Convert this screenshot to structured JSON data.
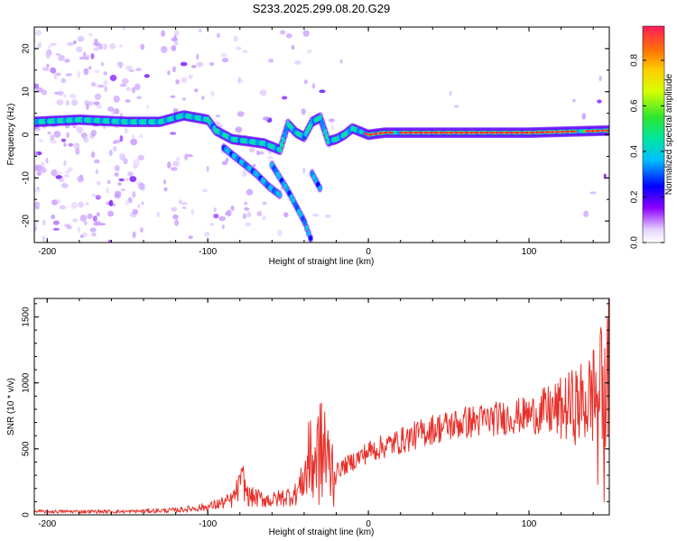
{
  "title": "S233.2025.299.08.20.G29",
  "colors": {
    "snr_line": "#e8302a",
    "axis": "#000000",
    "background": "#ffffff"
  },
  "chart_data": [
    {
      "type": "heatmap",
      "name": "spectrogram",
      "xlabel": "Height of straight line (km)",
      "ylabel": "Frequency (Hz)",
      "xlim": [
        -208,
        150
      ],
      "ylim": [
        -25,
        25
      ],
      "x_ticks": [
        -200,
        -100,
        0,
        100
      ],
      "x_tick_labels": [
        "-200",
        "-100",
        "0",
        "100"
      ],
      "y_ticks": [
        -20,
        -10,
        0,
        10,
        20
      ],
      "y_tick_labels": [
        "-20",
        "-10",
        "0",
        "10",
        "20"
      ],
      "colorbar": {
        "label": "Normalized spectral amplitude",
        "range": [
          0,
          0.95
        ],
        "ticks": [
          0.0,
          0.2,
          0.4,
          0.6,
          0.8
        ],
        "tick_labels": [
          "0.0",
          "0.2",
          "0.4",
          "0.6",
          "0.8"
        ]
      },
      "ridges": [
        {
          "name": "main-band",
          "points": [
            [
              -208,
              3
            ],
            [
              -180,
              3.5
            ],
            [
              -150,
              3
            ],
            [
              -130,
              3
            ],
            [
              -115,
              4.5
            ],
            [
              -100,
              3.5
            ],
            [
              -95,
              1
            ],
            [
              -85,
              -1
            ],
            [
              -75,
              -1.5
            ],
            [
              -65,
              -2
            ],
            [
              -55,
              -3.5
            ],
            [
              -50,
              2.5
            ],
            [
              -45,
              0.5
            ],
            [
              -40,
              -0.5
            ],
            [
              -35,
              3
            ],
            [
              -30,
              4
            ],
            [
              -25,
              -1.5
            ],
            [
              -20,
              -1
            ],
            [
              -15,
              0
            ],
            [
              -10,
              1.5
            ],
            [
              0,
              0
            ],
            [
              10,
              0.5
            ],
            [
              50,
              0.5
            ],
            [
              100,
              0.5
            ],
            [
              150,
              1
            ]
          ]
        },
        {
          "name": "lower-branch-1",
          "points": [
            [
              -90,
              -3
            ],
            [
              -80,
              -6
            ],
            [
              -70,
              -9
            ],
            [
              -62,
              -12
            ],
            [
              -55,
              -14
            ]
          ]
        },
        {
          "name": "lower-branch-2",
          "points": [
            [
              -60,
              -7
            ],
            [
              -50,
              -13
            ],
            [
              -40,
              -20
            ],
            [
              -35,
              -25
            ]
          ]
        },
        {
          "name": "lower-branch-3",
          "points": [
            [
              -35,
              -9
            ],
            [
              -30,
              -12.5
            ]
          ]
        }
      ],
      "peak_segments": [
        [
          -2,
          15
        ],
        [
          20,
          130
        ],
        [
          135,
          150
        ]
      ]
    },
    {
      "type": "line",
      "name": "snr",
      "xlabel": "Height of straight line (km)",
      "ylabel": "SNR (10 * v/v)",
      "xlim": [
        -208,
        150
      ],
      "ylim": [
        0,
        1640
      ],
      "x_ticks": [
        -200,
        -100,
        0,
        100
      ],
      "x_tick_labels": [
        "-200",
        "-100",
        "0",
        "100"
      ],
      "y_ticks": [
        0,
        500,
        1000,
        1500
      ],
      "y_tick_labels": [
        "0",
        "500",
        "1000",
        "1500"
      ],
      "series": [
        {
          "name": "SNR",
          "trend": [
            [
              -208,
              25
            ],
            [
              -150,
              25
            ],
            [
              -120,
              35
            ],
            [
              -100,
              60
            ],
            [
              -85,
              110
            ],
            [
              -78,
              260
            ],
            [
              -75,
              140
            ],
            [
              -60,
              110
            ],
            [
              -45,
              160
            ],
            [
              -35,
              400
            ],
            [
              -30,
              480
            ],
            [
              -25,
              380
            ],
            [
              -20,
              330
            ],
            [
              0,
              480
            ],
            [
              20,
              560
            ],
            [
              40,
              650
            ],
            [
              60,
              700
            ],
            [
              80,
              730
            ],
            [
              100,
              760
            ],
            [
              120,
              800
            ],
            [
              135,
              850
            ],
            [
              145,
              950
            ],
            [
              150,
              1000
            ]
          ],
          "spikes": [
            [
              -80,
              300
            ],
            [
              -30,
              840
            ],
            [
              -37,
              700
            ],
            [
              -27,
              780
            ],
            [
              145,
              1420
            ],
            [
              150,
              1640
            ],
            [
              149,
              1500
            ],
            [
              140,
              1250
            ]
          ],
          "dips": [
            [
              147,
              100
            ],
            [
              143,
              230
            ]
          ]
        }
      ]
    }
  ]
}
